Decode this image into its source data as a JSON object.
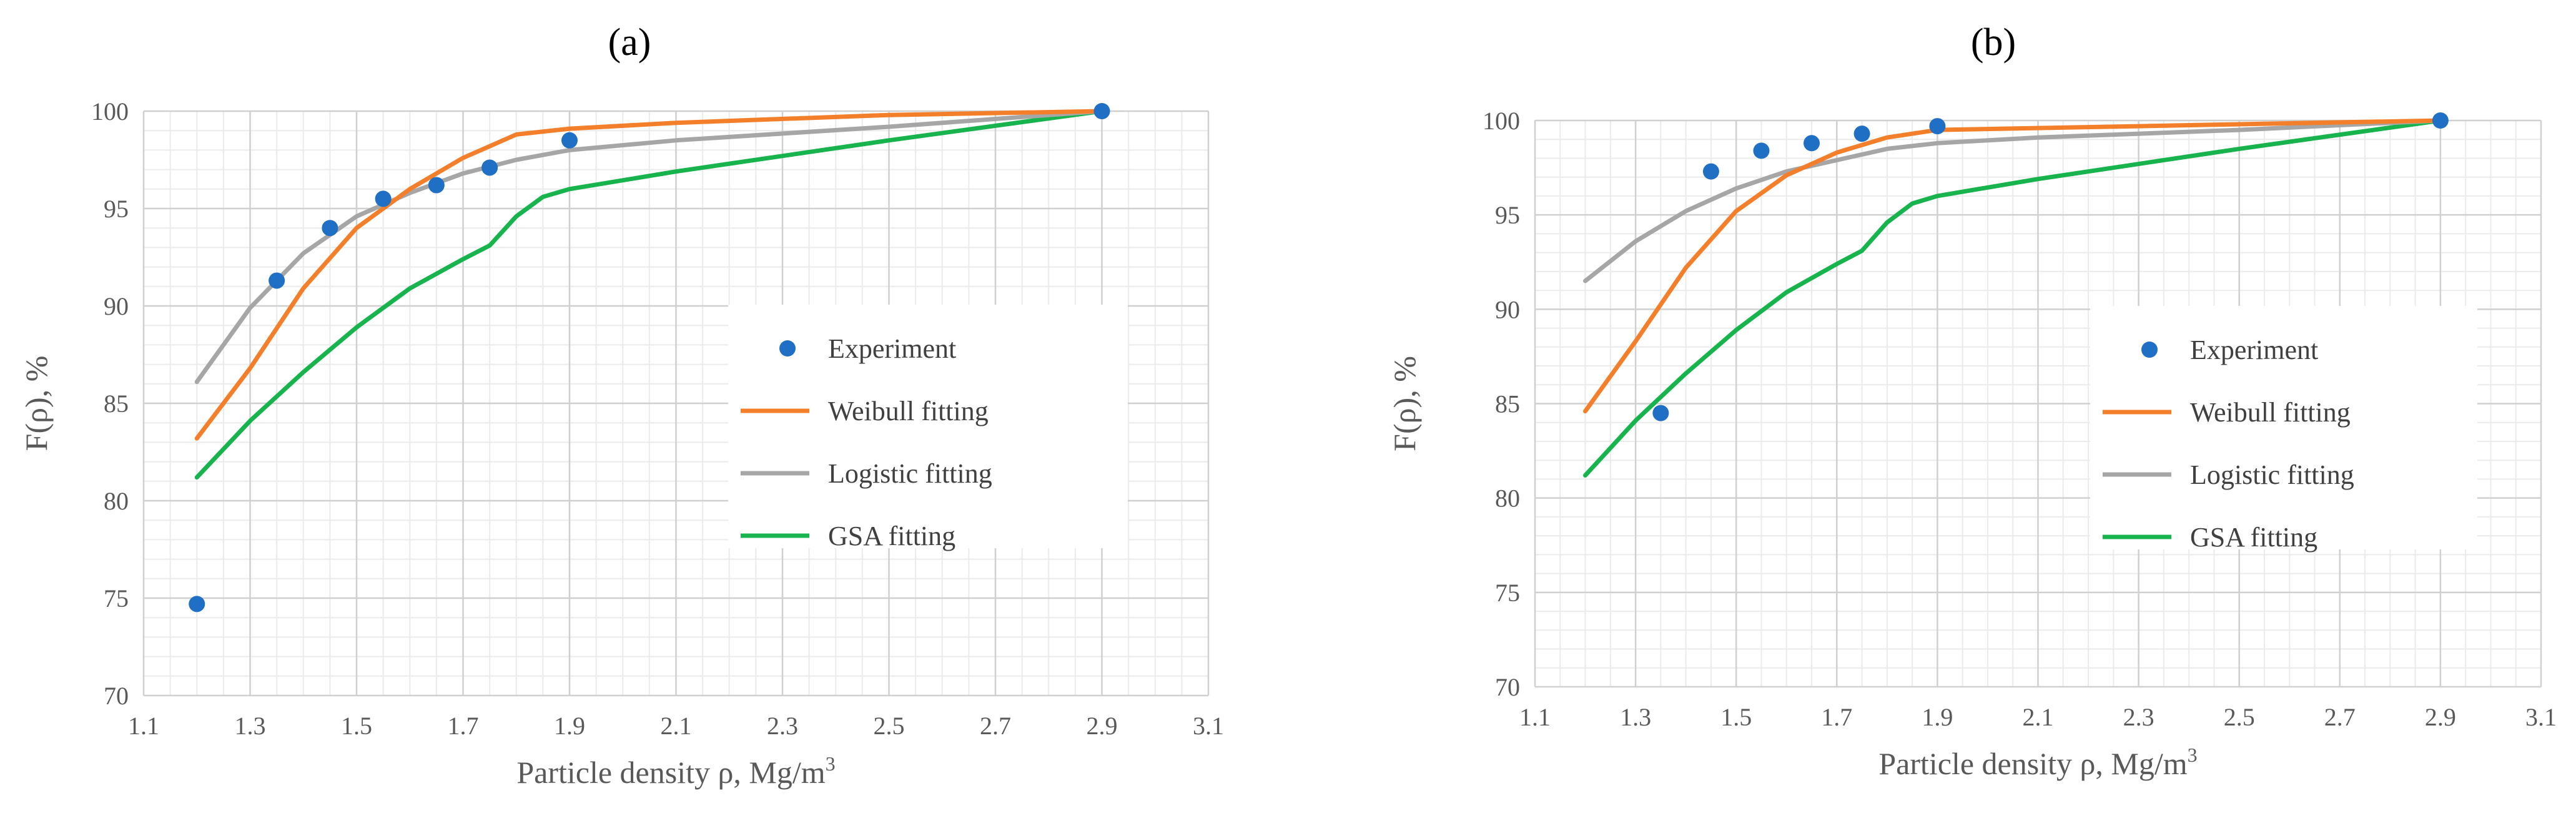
{
  "chart_data": [
    {
      "type": "line",
      "panel_label": "(a)",
      "xlabel": "Particle density ρ, Mg/m",
      "xlabel_sup": "3",
      "ylabel": "F(ρ),  %",
      "xlim": [
        1.1,
        3.1
      ],
      "ylim": [
        70,
        100
      ],
      "xticks": [
        "1.1",
        "1.3",
        "1.5",
        "1.7",
        "1.9",
        "2.1",
        "2.3",
        "2.5",
        "2.7",
        "2.9",
        "3.1"
      ],
      "yticks": [
        "70",
        "75",
        "80",
        "85",
        "90",
        "95",
        "100"
      ],
      "grid": true,
      "legend_position": "right",
      "series": [
        {
          "name": "Experiment",
          "kind": "scatter",
          "color": "#1f6fc5",
          "x": [
            1.2,
            1.35,
            1.45,
            1.55,
            1.65,
            1.75,
            1.9,
            2.9
          ],
          "y": [
            74.7,
            91.3,
            94.0,
            95.5,
            96.2,
            97.1,
            98.5,
            100.0
          ]
        },
        {
          "name": "Weibull fitting",
          "kind": "line",
          "color": "#f47f2a",
          "x": [
            1.2,
            1.3,
            1.4,
            1.5,
            1.6,
            1.7,
            1.8,
            1.9,
            2.1,
            2.5,
            2.9
          ],
          "y": [
            83.2,
            86.8,
            90.9,
            94.0,
            96.0,
            97.6,
            98.8,
            99.1,
            99.4,
            99.8,
            100.0
          ]
        },
        {
          "name": "Logistic fitting",
          "kind": "line",
          "color": "#a6a6a6",
          "x": [
            1.2,
            1.3,
            1.4,
            1.5,
            1.6,
            1.7,
            1.8,
            1.9,
            2.1,
            2.5,
            2.9
          ],
          "y": [
            86.1,
            89.9,
            92.7,
            94.6,
            95.8,
            96.8,
            97.5,
            98.0,
            98.5,
            99.2,
            100.0
          ]
        },
        {
          "name": "GSA fitting",
          "kind": "line",
          "color": "#17b34d",
          "x": [
            1.2,
            1.3,
            1.4,
            1.5,
            1.6,
            1.7,
            1.75,
            1.8,
            1.85,
            1.9,
            2.1,
            2.5,
            2.9
          ],
          "y": [
            81.2,
            84.1,
            86.6,
            88.9,
            90.9,
            92.4,
            93.1,
            94.6,
            95.6,
            96.0,
            96.9,
            98.5,
            100.0
          ]
        }
      ]
    },
    {
      "type": "line",
      "panel_label": "(b)",
      "xlabel": "Particle density ρ, Mg/m",
      "xlabel_sup": "3",
      "ylabel": "F(ρ),  %",
      "xlim": [
        1.1,
        3.1
      ],
      "ylim": [
        70,
        100
      ],
      "xticks": [
        "1.1",
        "1.3",
        "1.5",
        "1.7",
        "1.9",
        "2.1",
        "2.3",
        "2.5",
        "2.7",
        "2.9",
        "3.1"
      ],
      "yticks": [
        "70",
        "75",
        "80",
        "85",
        "90",
        "95",
        "100"
      ],
      "grid": true,
      "legend_position": "right",
      "series": [
        {
          "name": "Experiment",
          "kind": "scatter",
          "color": "#1f6fc5",
          "x": [
            1.35,
            1.45,
            1.55,
            1.65,
            1.75,
            1.9,
            2.9
          ],
          "y": [
            84.5,
            97.3,
            98.4,
            98.8,
            99.3,
            99.7,
            100.0
          ]
        },
        {
          "name": "Weibull fitting",
          "kind": "line",
          "color": "#f47f2a",
          "x": [
            1.2,
            1.3,
            1.4,
            1.5,
            1.6,
            1.7,
            1.8,
            1.9,
            2.1,
            2.5,
            2.9
          ],
          "y": [
            84.6,
            88.3,
            92.2,
            95.2,
            97.1,
            98.3,
            99.1,
            99.5,
            99.6,
            99.8,
            100.0
          ]
        },
        {
          "name": "Logistic fitting",
          "kind": "line",
          "color": "#a6a6a6",
          "x": [
            1.2,
            1.3,
            1.4,
            1.5,
            1.6,
            1.7,
            1.8,
            1.9,
            2.1,
            2.5,
            2.9
          ],
          "y": [
            91.5,
            93.6,
            95.2,
            96.4,
            97.3,
            97.9,
            98.5,
            98.8,
            99.1,
            99.5,
            100.0
          ]
        },
        {
          "name": "GSA fitting",
          "kind": "line",
          "color": "#17b34d",
          "x": [
            1.2,
            1.3,
            1.4,
            1.5,
            1.6,
            1.7,
            1.75,
            1.8,
            1.85,
            1.9,
            2.1,
            2.5,
            2.9
          ],
          "y": [
            81.2,
            84.1,
            86.6,
            88.9,
            90.9,
            92.4,
            93.1,
            94.6,
            95.6,
            96.0,
            96.9,
            98.5,
            100.0
          ]
        }
      ]
    }
  ]
}
